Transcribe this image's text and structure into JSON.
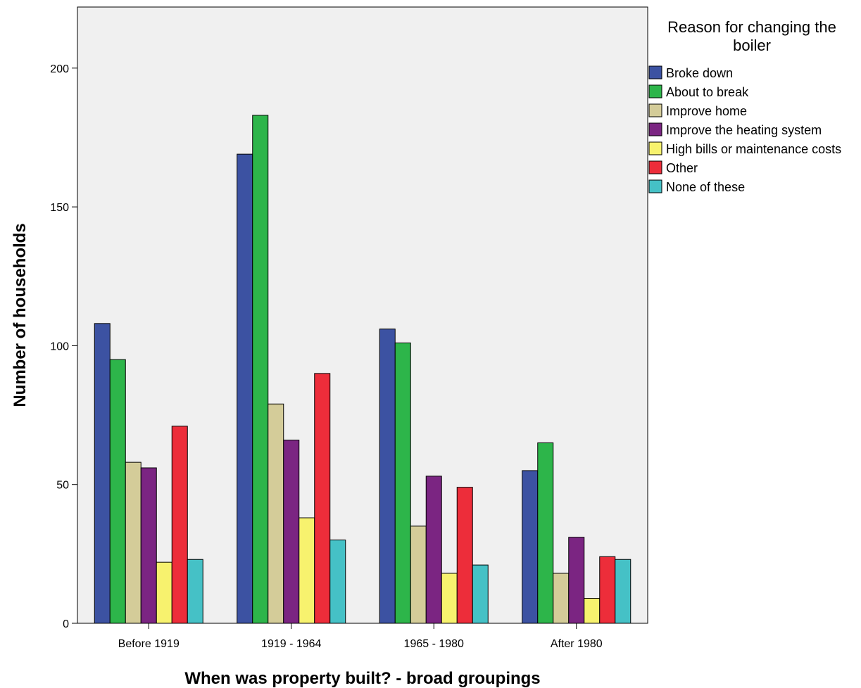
{
  "chart_data": {
    "type": "bar",
    "categories": [
      "Before 1919",
      "1919 - 1964",
      "1965 - 1980",
      "After 1980"
    ],
    "series": [
      {
        "name": "Broke down",
        "color": "#3c52a2",
        "values": [
          108,
          169,
          106,
          55
        ]
      },
      {
        "name": "About to break",
        "color": "#2db54a",
        "values": [
          95,
          183,
          101,
          65
        ]
      },
      {
        "name": "Improve home",
        "color": "#d4cc99",
        "values": [
          58,
          79,
          35,
          18
        ]
      },
      {
        "name": "Improve the heating system",
        "color": "#7b2582",
        "values": [
          56,
          66,
          53,
          31
        ]
      },
      {
        "name": "High bills or maintenance costs",
        "color": "#f7f26e",
        "values": [
          22,
          38,
          18,
          9
        ]
      },
      {
        "name": "Other",
        "color": "#ed2d3a",
        "values": [
          71,
          90,
          49,
          24
        ]
      },
      {
        "name": "None of these",
        "color": "#45c1c6",
        "values": [
          23,
          30,
          21,
          23
        ]
      }
    ],
    "xlabel": "When was property built? - broad groupings",
    "ylabel": "Number of households",
    "ylim": [
      0,
      222
    ],
    "yticks": [
      0,
      50,
      100,
      150,
      200
    ],
    "legend": {
      "title": "Reason for changing the boiler",
      "placement": "right"
    },
    "plot_background": "#f0f0f0",
    "grid": false
  }
}
